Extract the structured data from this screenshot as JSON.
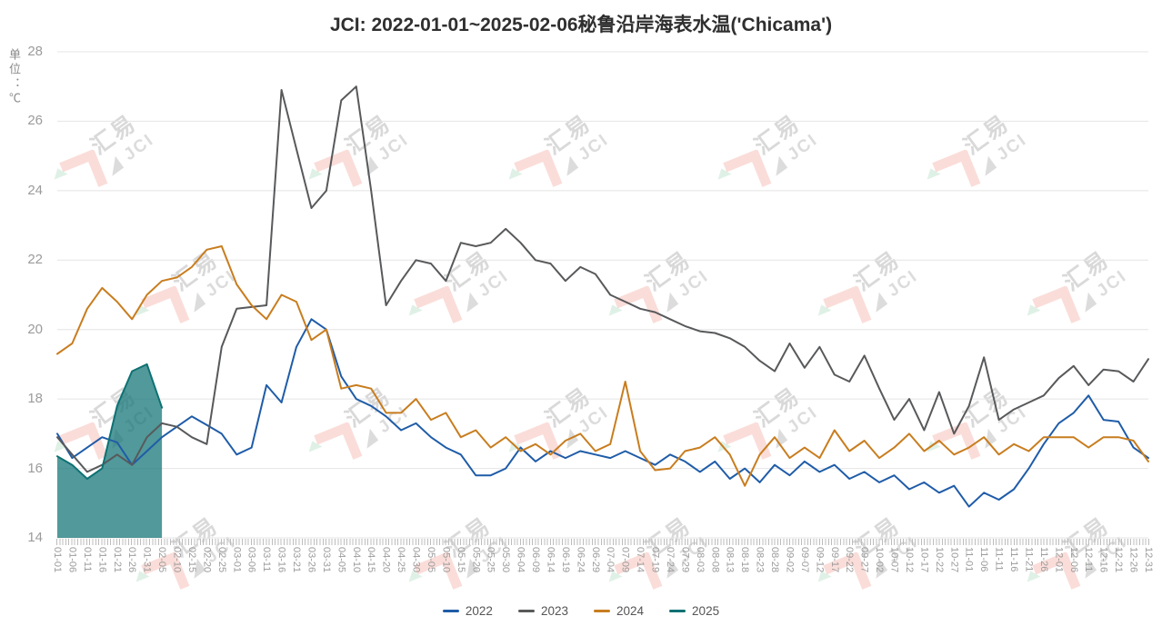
{
  "title": "JCI: 2022-01-01~2025-02-06秘鲁沿岸海表水温('Chicama')",
  "y_axis_unit": "单位：℃",
  "watermark": {
    "zh": "汇易",
    "en": "JCI"
  },
  "colors": {
    "grid": "#e4e4e4",
    "axis_label": "#9b9b9b",
    "title_text": "#2f2f2f",
    "legend_text": "#555555"
  },
  "chart_data": {
    "type": "line",
    "title": "JCI: 2022-01-01~2025-02-06秘鲁沿岸海表水温('Chicama')",
    "xlabel": "",
    "ylabel": "单位：℃",
    "ylim": [
      14,
      28
    ],
    "y_ticks": [
      28,
      26,
      24,
      22,
      20,
      18,
      16,
      14
    ],
    "grid": true,
    "legend_position": "bottom",
    "x_tick_rotation": "vertical",
    "categories": [
      "01-01",
      "01-06",
      "01-11",
      "01-16",
      "01-21",
      "01-26",
      "01-31",
      "02-05",
      "02-10",
      "02-15",
      "02-20",
      "02-25",
      "03-01",
      "03-06",
      "03-11",
      "03-16",
      "03-21",
      "03-26",
      "03-31",
      "04-05",
      "04-10",
      "04-15",
      "04-20",
      "04-25",
      "04-30",
      "05-05",
      "05-10",
      "05-15",
      "05-20",
      "05-25",
      "05-30",
      "06-04",
      "06-09",
      "06-14",
      "06-19",
      "06-24",
      "06-29",
      "07-04",
      "07-09",
      "07-14",
      "07-19",
      "07-24",
      "07-29",
      "08-03",
      "08-08",
      "08-13",
      "08-18",
      "08-23",
      "08-28",
      "09-02",
      "09-07",
      "09-12",
      "09-17",
      "09-22",
      "09-27",
      "10-02",
      "10-07",
      "10-12",
      "10-17",
      "10-22",
      "10-27",
      "11-01",
      "11-06",
      "11-11",
      "11-16",
      "11-21",
      "11-26",
      "12-01",
      "12-06",
      "12-11",
      "12-16",
      "12-21",
      "12-26",
      "12-31"
    ],
    "series": [
      {
        "name": "2022",
        "color": "#1f5ca8",
        "area": false,
        "values": [
          17.0,
          16.3,
          16.6,
          16.9,
          16.75,
          16.1,
          16.5,
          16.9,
          17.2,
          17.5,
          17.25,
          17.0,
          16.4,
          16.6,
          18.4,
          17.9,
          19.5,
          20.3,
          20.0,
          18.65,
          18.0,
          17.8,
          17.5,
          17.1,
          17.3,
          16.9,
          16.6,
          16.4,
          15.8,
          15.8,
          16.0,
          16.6,
          16.2,
          16.5,
          16.3,
          16.5,
          16.4,
          16.3,
          16.5,
          16.3,
          16.1,
          16.4,
          16.2,
          15.9,
          16.2,
          15.7,
          16.0,
          15.6,
          16.1,
          15.8,
          16.2,
          15.9,
          16.1,
          15.7,
          15.9,
          15.6,
          15.8,
          15.4,
          15.6,
          15.3,
          15.5,
          14.9,
          15.3,
          15.1,
          15.4,
          16.0,
          16.7,
          17.3,
          17.6,
          18.1,
          17.4,
          17.35,
          16.6,
          16.3
        ]
      },
      {
        "name": "2023",
        "color": "#58595b",
        "area": false,
        "values": [
          16.9,
          16.4,
          15.9,
          16.1,
          16.4,
          16.1,
          16.9,
          17.3,
          17.2,
          16.9,
          16.7,
          19.5,
          20.6,
          20.65,
          20.7,
          26.9,
          25.2,
          23.5,
          24.0,
          26.6,
          27.0,
          24.0,
          20.7,
          21.4,
          22.0,
          21.9,
          21.4,
          22.5,
          22.4,
          22.5,
          22.9,
          22.5,
          22.0,
          21.9,
          21.4,
          21.8,
          21.6,
          21.0,
          20.8,
          20.6,
          20.5,
          20.3,
          20.1,
          19.95,
          19.9,
          19.75,
          19.5,
          19.1,
          18.8,
          19.6,
          18.9,
          19.5,
          18.7,
          18.5,
          19.25,
          18.3,
          17.4,
          18.0,
          17.1,
          18.2,
          17.0,
          17.8,
          19.2,
          17.4,
          17.7,
          17.9,
          18.1,
          18.6,
          18.95,
          18.4,
          18.85,
          18.8,
          18.5,
          19.15
        ]
      },
      {
        "name": "2024",
        "color": "#c87d1f",
        "area": false,
        "values": [
          19.3,
          19.6,
          20.6,
          21.2,
          20.8,
          20.3,
          21.0,
          21.4,
          21.5,
          21.8,
          22.3,
          22.4,
          21.3,
          20.7,
          20.3,
          21.0,
          20.8,
          19.7,
          20.0,
          18.3,
          18.4,
          18.3,
          17.6,
          17.6,
          18.0,
          17.4,
          17.6,
          16.9,
          17.1,
          16.6,
          16.9,
          16.5,
          16.7,
          16.4,
          16.8,
          17.0,
          16.5,
          16.7,
          18.5,
          16.5,
          15.95,
          16.0,
          16.5,
          16.6,
          16.9,
          16.4,
          15.5,
          16.4,
          16.9,
          16.3,
          16.6,
          16.3,
          17.1,
          16.5,
          16.8,
          16.3,
          16.6,
          17.0,
          16.5,
          16.8,
          16.4,
          16.6,
          16.9,
          16.4,
          16.7,
          16.5,
          16.9,
          16.9,
          16.9,
          16.6,
          16.9,
          16.9,
          16.8,
          16.2
        ]
      },
      {
        "name": "2025",
        "color": "#0e7173",
        "area": true,
        "area_opacity": 0.72,
        "values": [
          16.35,
          16.1,
          15.7,
          16.0,
          17.8,
          18.8,
          19.0,
          17.75
        ]
      }
    ]
  }
}
